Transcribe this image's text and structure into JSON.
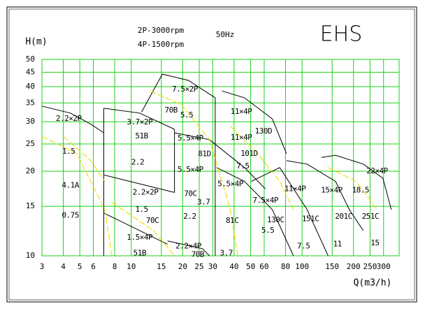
{
  "chart_data": {
    "type": "line",
    "title": "EHS",
    "texts": [
      "2P-3000rpm",
      "4P-1500rpm",
      "50Hz"
    ],
    "x_label": "Q(m3/h)",
    "y_label": "H(m)",
    "log_x": true,
    "log_y": true,
    "grid": true,
    "grid_color": "#19d219",
    "xlim": [
      3,
      370
    ],
    "ylim": [
      10,
      50
    ],
    "xticks": [
      3,
      4,
      5,
      6,
      8,
      10,
      15,
      20,
      25,
      30,
      40,
      50,
      60,
      80,
      100,
      150,
      200,
      250,
      300
    ],
    "yticks": [
      10,
      15,
      20,
      25,
      30,
      35,
      40,
      45,
      50
    ],
    "series": [
      {
        "color": "#000000",
        "style": "solid",
        "x": [
          3,
          4.4,
          5.8
        ],
        "values": [
          34.1,
          32.2,
          29.4
        ]
      },
      {
        "color": "#000000",
        "style": "solid",
        "x": [
          5.8,
          6.9
        ],
        "values": [
          29.4,
          27.4
        ]
      },
      {
        "color": "#000000",
        "style": "solid",
        "x": [
          6.9,
          11.2,
          17.9
        ],
        "values": [
          33.5,
          32.2,
          28.2
        ]
      },
      {
        "color": "#000000",
        "style": "solid",
        "x": [
          11.5,
          15.2,
          21.6,
          31
        ],
        "values": [
          32.5,
          44.3,
          42.1,
          36.5
        ]
      },
      {
        "color": "#000000",
        "style": "solid",
        "x": [
          34,
          46,
          67,
          81
        ],
        "values": [
          38.6,
          36.5,
          30.7,
          23.1
        ]
      },
      {
        "color": "#000000",
        "style": "solid",
        "x": [
          130,
          157,
          228,
          297,
          333
        ],
        "values": [
          22.4,
          22.8,
          21.2,
          18.9,
          14.6
        ]
      },
      {
        "color": "#000000",
        "style": "solid",
        "x": [
          81,
          107,
          157,
          189,
          228
        ],
        "values": [
          21.8,
          21.2,
          18.4,
          14.6,
          12.3
        ]
      },
      {
        "color": "#000000",
        "style": "solid",
        "x": [
          6.9,
          17.9
        ],
        "values": [
          19.4,
          16.8
        ]
      },
      {
        "color": "#000000",
        "style": "solid",
        "x": [
          6.9,
          11.2,
          16.3
        ],
        "values": [
          14.2,
          12.3,
          11
        ]
      },
      {
        "color": "#000000",
        "style": "solid",
        "x": [
          16.3,
          26.1,
          28.7
        ],
        "values": [
          11.3,
          10.6,
          10
        ]
      },
      {
        "color": "#000000",
        "style": "solid",
        "x": [
          6.9,
          6.9
        ],
        "values": [
          33.5,
          10
        ]
      },
      {
        "color": "#000000",
        "style": "solid",
        "x": [
          31,
          31
        ],
        "values": [
          36.5,
          10
        ]
      },
      {
        "color": "#000000",
        "style": "solid",
        "x": [
          17.9,
          17.9
        ],
        "values": [
          28.2,
          16.8
        ]
      },
      {
        "color": "#000000",
        "style": "solid",
        "x": [
          17.9,
          28.7,
          46,
          61
        ],
        "values": [
          27.4,
          25.9,
          20.6,
          17.3
        ]
      },
      {
        "color": "#000000",
        "style": "solid",
        "x": [
          31.6,
          46,
          67,
          89
        ],
        "values": [
          20.6,
          18.4,
          14.6,
          10
        ]
      },
      {
        "color": "#000000",
        "style": "solid",
        "x": [
          50.5,
          74,
          107,
          142
        ],
        "values": [
          18.4,
          20.6,
          14.6,
          10
        ]
      },
      {
        "color": "#f2dc00",
        "style": "dashed",
        "x": [
          3,
          4.8,
          7,
          7.7
        ],
        "values": [
          26.6,
          23.1,
          14.6,
          10
        ]
      },
      {
        "color": "#f2dc00",
        "style": "dashed",
        "x": [
          4,
          5.8,
          7
        ],
        "values": [
          26.6,
          21.8,
          18.4
        ]
      },
      {
        "color": "#f2dc00",
        "style": "dashed",
        "x": [
          12.9,
          19.7,
          28.7,
          38,
          42
        ],
        "values": [
          38.6,
          34.5,
          25.9,
          14.6,
          10
        ]
      },
      {
        "color": "#f2dc00",
        "style": "dashed",
        "x": [
          7.7,
          13.5,
          17.9
        ],
        "values": [
          15.5,
          12.3,
          10
        ]
      },
      {
        "color": "#f2dc00",
        "style": "dashed",
        "x": [
          38,
          55,
          74,
          89
        ],
        "values": [
          29,
          23.1,
          18.4,
          14.6
        ]
      },
      {
        "color": "#f2dc00",
        "style": "dashed",
        "x": [
          142,
          207,
          275
        ],
        "values": [
          20.6,
          18.4,
          14.6
        ]
      }
    ],
    "annotations": [
      {
        "text": "2.2×2P",
        "x": 4.3,
        "y": 30.7
      },
      {
        "text": "1.5",
        "x": 4.3,
        "y": 23.5
      },
      {
        "text": "4.1A",
        "x": 4.4,
        "y": 17.8
      },
      {
        "text": "0.75",
        "x": 4.4,
        "y": 13.9
      },
      {
        "text": "3.7×2P",
        "x": 11.2,
        "y": 29.9
      },
      {
        "text": "51B",
        "x": 11.5,
        "y": 26.6
      },
      {
        "text": "2.2",
        "x": 10.9,
        "y": 21.5
      },
      {
        "text": "2.2×2P",
        "x": 12.1,
        "y": 16.8
      },
      {
        "text": "1.5",
        "x": 11.5,
        "y": 14.6
      },
      {
        "text": "70C",
        "x": 13.3,
        "y": 13.3
      },
      {
        "text": "1.5×4P",
        "x": 11.2,
        "y": 11.6
      },
      {
        "text": "51B",
        "x": 11.2,
        "y": 10.2
      },
      {
        "text": "7.5×2P",
        "x": 20.6,
        "y": 39.1
      },
      {
        "text": "70B",
        "x": 17.1,
        "y": 32.9
      },
      {
        "text": "5.5",
        "x": 21.1,
        "y": 31.6
      },
      {
        "text": "5.5×4P",
        "x": 22.2,
        "y": 26.2
      },
      {
        "text": "81D",
        "x": 26.8,
        "y": 23
      },
      {
        "text": "5.5×4P",
        "x": 22.2,
        "y": 20.2
      },
      {
        "text": "70C",
        "x": 22.2,
        "y": 16.6
      },
      {
        "text": "3.7",
        "x": 26.5,
        "y": 15.5
      },
      {
        "text": "2.2",
        "x": 22,
        "y": 13.8
      },
      {
        "text": "2.2×4P",
        "x": 21.6,
        "y": 10.8
      },
      {
        "text": "70B",
        "x": 24.5,
        "y": 10.1
      },
      {
        "text": "3.7",
        "x": 36,
        "y": 10.2
      },
      {
        "text": "11×4P",
        "x": 44,
        "y": 32.5
      },
      {
        "text": "130D",
        "x": 59.4,
        "y": 27.7
      },
      {
        "text": "11×4P",
        "x": 44,
        "y": 26.3
      },
      {
        "text": "101D",
        "x": 49,
        "y": 23.1
      },
      {
        "text": "7.5",
        "x": 45,
        "y": 20.8
      },
      {
        "text": "5.5×4P",
        "x": 38,
        "y": 18
      },
      {
        "text": "7.5×4P",
        "x": 61,
        "y": 15.7
      },
      {
        "text": "81C",
        "x": 39,
        "y": 13.3
      },
      {
        "text": "130C",
        "x": 70,
        "y": 13.4
      },
      {
        "text": "5.5",
        "x": 63,
        "y": 12.3
      },
      {
        "text": "11×4P",
        "x": 91,
        "y": 17.3
      },
      {
        "text": "151C",
        "x": 112,
        "y": 13.5
      },
      {
        "text": "7.5",
        "x": 102,
        "y": 10.8
      },
      {
        "text": "15×4P",
        "x": 149,
        "y": 17.1
      },
      {
        "text": "201C",
        "x": 175,
        "y": 13.8
      },
      {
        "text": "11",
        "x": 161,
        "y": 11
      },
      {
        "text": "18.5",
        "x": 220,
        "y": 17.1
      },
      {
        "text": "251C",
        "x": 251,
        "y": 13.8
      },
      {
        "text": "15",
        "x": 267,
        "y": 11.1
      },
      {
        "text": "22×4P",
        "x": 275,
        "y": 20
      }
    ]
  }
}
